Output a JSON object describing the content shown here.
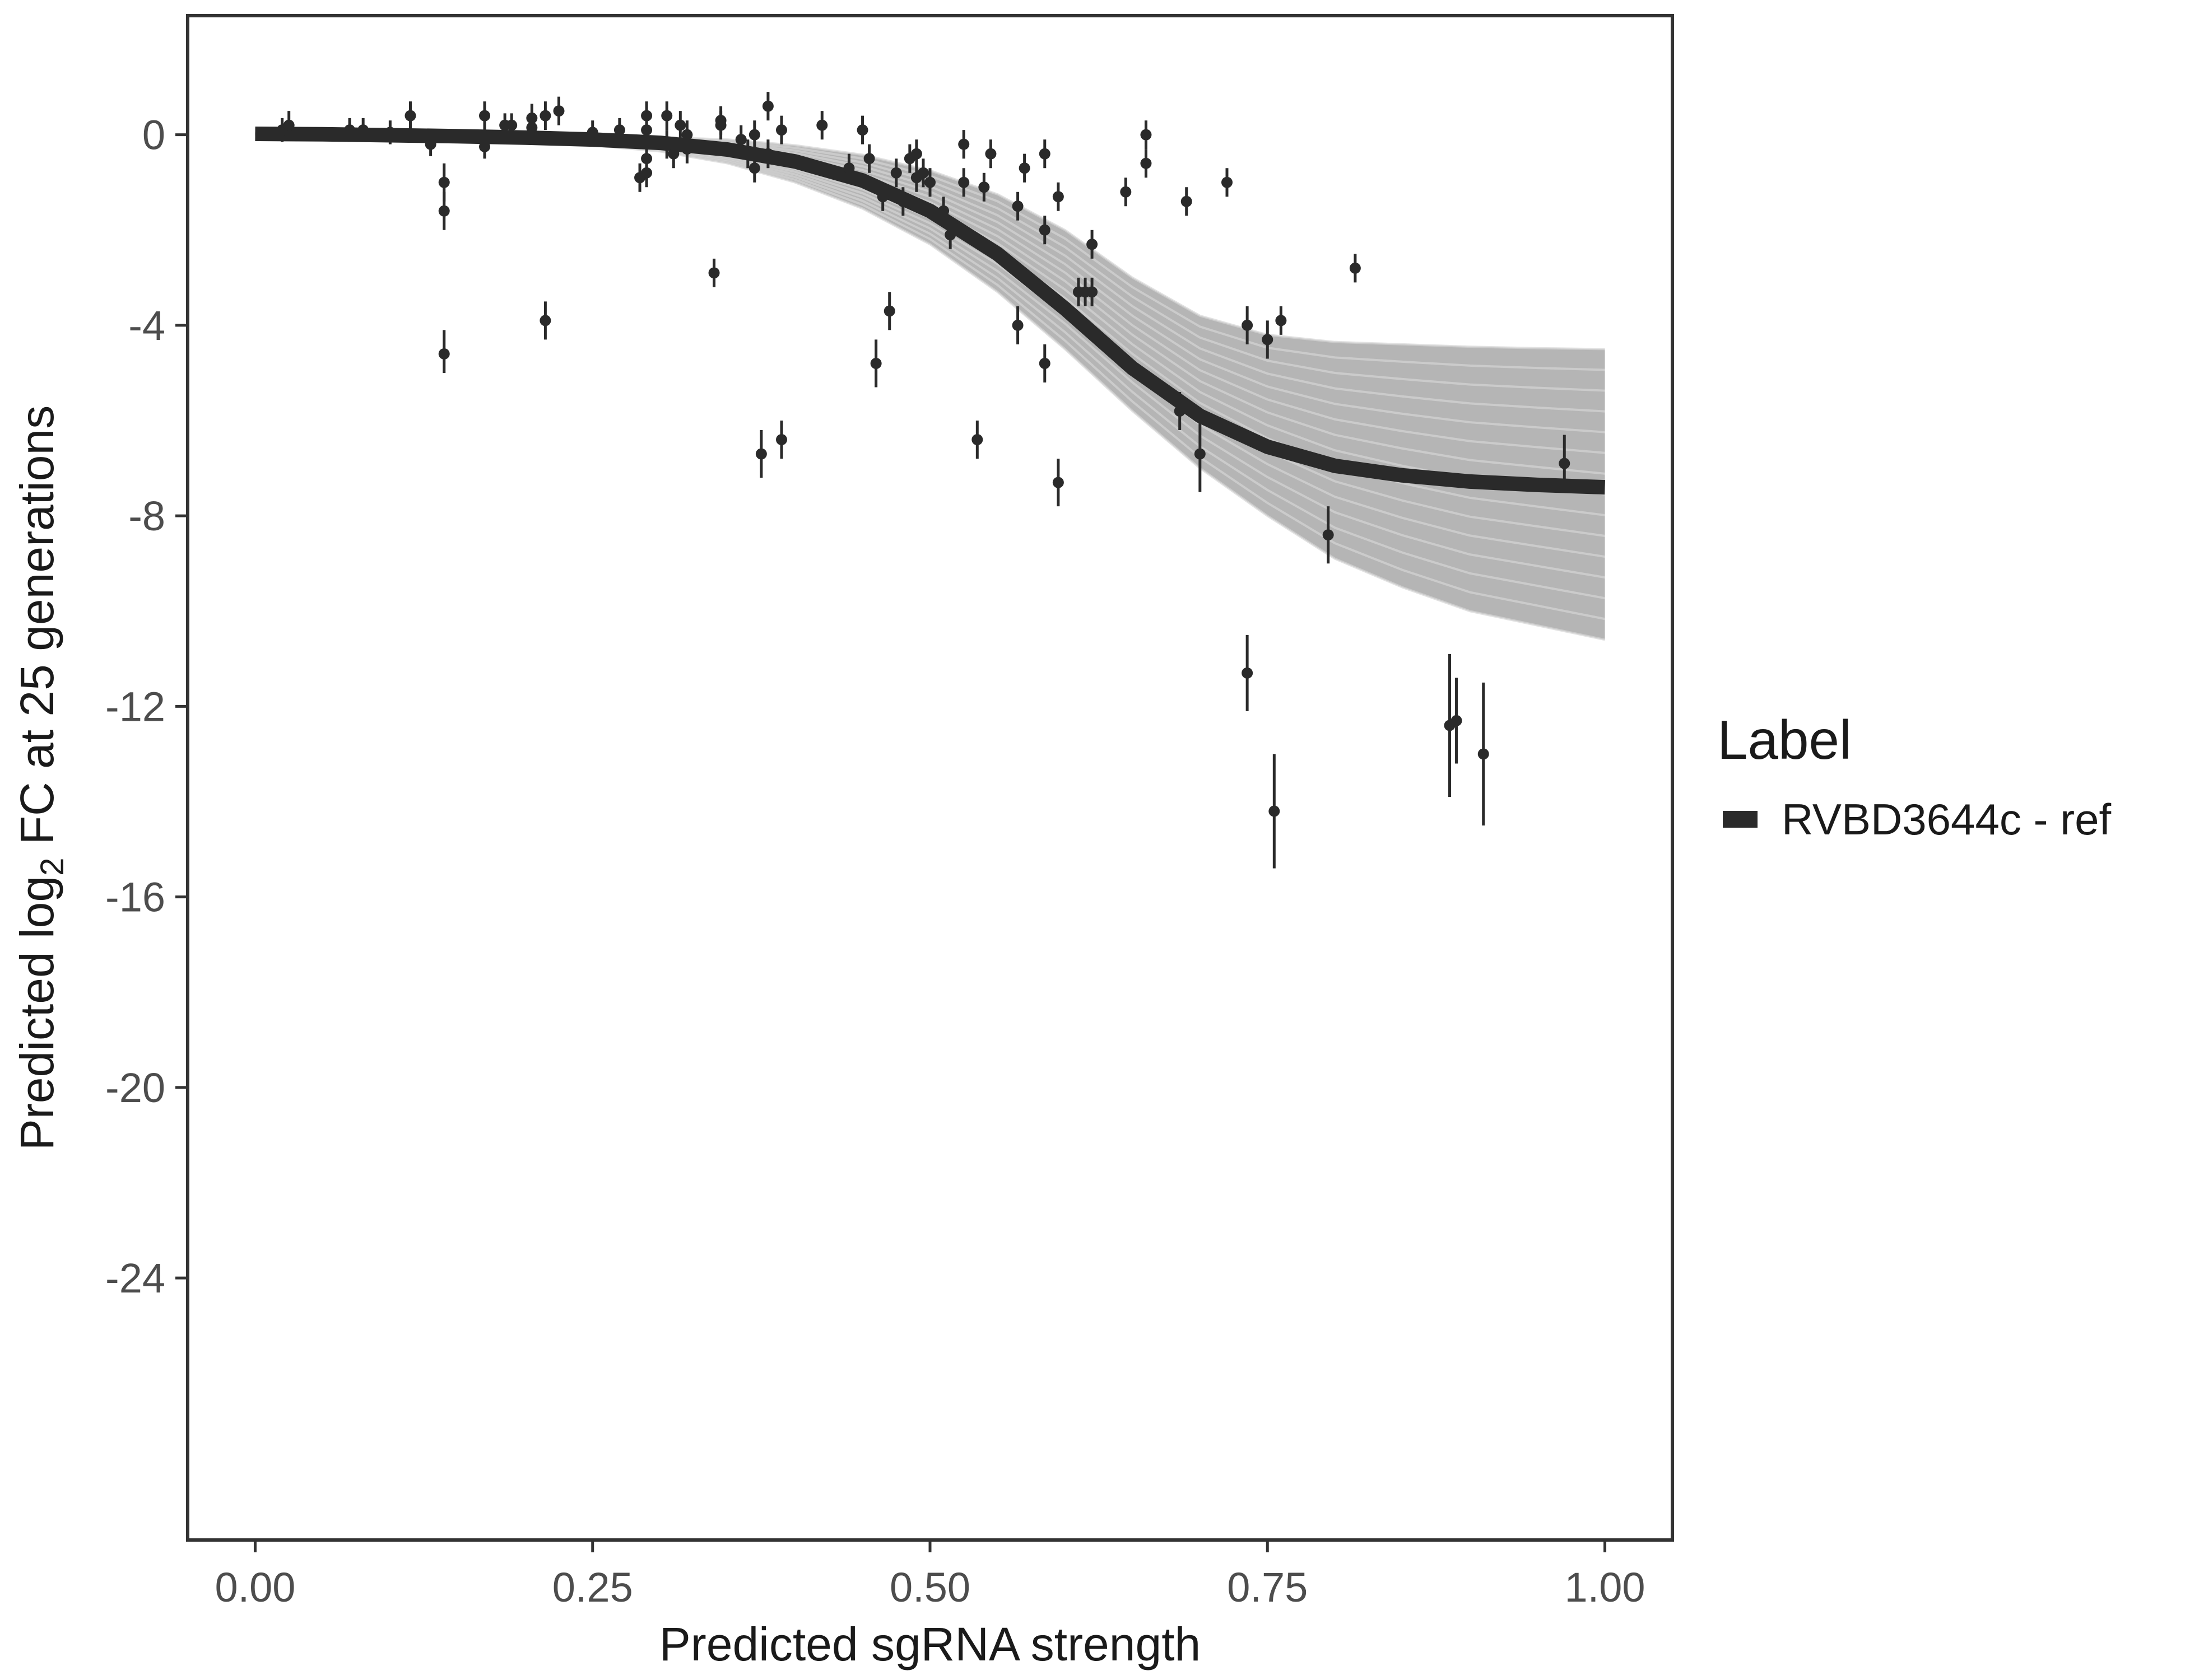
{
  "chart_data": {
    "type": "scatter",
    "title": "",
    "xlabel": "Predicted sgRNA strength",
    "ylabel_parts": [
      "Predicted  log",
      "2",
      " FC at 25 generations"
    ],
    "xlim": [
      -0.05,
      1.05
    ],
    "ylim": [
      -29.5,
      2.5
    ],
    "x_ticks": [
      0,
      0.25,
      0.5,
      0.75,
      1
    ],
    "x_tick_labels": [
      "0.00",
      "0.25",
      "0.50",
      "0.75",
      "1.00"
    ],
    "y_ticks": [
      0,
      -4,
      -8,
      -12,
      -16,
      -20,
      -24
    ],
    "y_tick_labels": [
      "0",
      "-4",
      "-8",
      "-12",
      "-16",
      "-20",
      "-24"
    ],
    "grid": false,
    "legend": {
      "title": "Label",
      "position": "right",
      "entries": [
        {
          "label": "RVBD3644c - ref",
          "color": "#2a2a2a"
        }
      ]
    },
    "fit_curve": {
      "series": "RVBD3644c - ref",
      "x": [
        0,
        0.05,
        0.1,
        0.15,
        0.2,
        0.25,
        0.3,
        0.35,
        0.4,
        0.45,
        0.5,
        0.55,
        0.6,
        0.65,
        0.7,
        0.75,
        0.8,
        0.85,
        0.9,
        0.95,
        1.0
      ],
      "y": [
        0.02,
        0.01,
        -0.01,
        -0.03,
        -0.06,
        -0.1,
        -0.17,
        -0.31,
        -0.56,
        -0.96,
        -1.6,
        -2.5,
        -3.65,
        -4.9,
        -5.9,
        -6.55,
        -6.95,
        -7.15,
        -7.28,
        -7.35,
        -7.4
      ],
      "color": "#2a2a2a"
    },
    "posterior_band": {
      "description_color": "#a8a8a8",
      "x": [
        0,
        0.1,
        0.2,
        0.3,
        0.35,
        0.4,
        0.45,
        0.5,
        0.55,
        0.6,
        0.65,
        0.7,
        0.75,
        0.8,
        0.85,
        0.9,
        0.95,
        1.0
      ],
      "lower": [
        0.0,
        -0.03,
        -0.1,
        -0.35,
        -0.6,
        -1.0,
        -1.55,
        -2.3,
        -3.3,
        -4.5,
        -5.8,
        -7.0,
        -8.0,
        -8.9,
        -9.5,
        -10.0,
        -10.3,
        -10.6
      ],
      "upper": [
        0.05,
        0.02,
        0.0,
        -0.05,
        -0.1,
        -0.22,
        -0.42,
        -0.75,
        -1.25,
        -2.0,
        -3.0,
        -3.8,
        -4.2,
        -4.35,
        -4.4,
        -4.45,
        -4.48,
        -4.5
      ]
    },
    "points": [
      {
        "x": 0.02,
        "y": 0.1,
        "lo": -0.15,
        "hi": 0.35
      },
      {
        "x": 0.025,
        "y": 0.2,
        "lo": -0.1,
        "hi": 0.5
      },
      {
        "x": 0.07,
        "y": 0.1,
        "lo": -0.15,
        "hi": 0.35
      },
      {
        "x": 0.08,
        "y": 0.1,
        "lo": -0.15,
        "hi": 0.35
      },
      {
        "x": 0.1,
        "y": 0.05,
        "lo": -0.2,
        "hi": 0.3
      },
      {
        "x": 0.115,
        "y": 0.4,
        "lo": 0.1,
        "hi": 0.7
      },
      {
        "x": 0.13,
        "y": -0.2,
        "lo": -0.45,
        "hi": 0.05
      },
      {
        "x": 0.14,
        "y": -1.0,
        "lo": -1.4,
        "hi": -0.6
      },
      {
        "x": 0.14,
        "y": -1.6,
        "lo": -2.0,
        "hi": -1.2
      },
      {
        "x": 0.14,
        "y": -4.6,
        "lo": -5.0,
        "hi": -4.1
      },
      {
        "x": 0.17,
        "y": 0.4,
        "lo": 0.1,
        "hi": 0.7
      },
      {
        "x": 0.17,
        "y": -0.25,
        "lo": -0.5,
        "hi": 0.0
      },
      {
        "x": 0.185,
        "y": 0.2,
        "lo": -0.05,
        "hi": 0.45
      },
      {
        "x": 0.19,
        "y": 0.2,
        "lo": -0.05,
        "hi": 0.45
      },
      {
        "x": 0.205,
        "y": 0.35,
        "lo": 0.05,
        "hi": 0.65
      },
      {
        "x": 0.205,
        "y": 0.15,
        "lo": -0.1,
        "hi": 0.4
      },
      {
        "x": 0.215,
        "y": 0.4,
        "lo": 0.1,
        "hi": 0.7
      },
      {
        "x": 0.215,
        "y": -3.9,
        "lo": -4.3,
        "hi": -3.5
      },
      {
        "x": 0.225,
        "y": 0.5,
        "lo": 0.2,
        "hi": 0.8
      },
      {
        "x": 0.25,
        "y": 0.05,
        "lo": -0.2,
        "hi": 0.3
      },
      {
        "x": 0.27,
        "y": 0.1,
        "lo": -0.15,
        "hi": 0.35
      },
      {
        "x": 0.285,
        "y": -0.9,
        "lo": -1.2,
        "hi": -0.6
      },
      {
        "x": 0.29,
        "y": 0.4,
        "lo": 0.1,
        "hi": 0.7
      },
      {
        "x": 0.29,
        "y": 0.1,
        "lo": -0.2,
        "hi": 0.4
      },
      {
        "x": 0.29,
        "y": -0.5,
        "lo": -0.8,
        "hi": -0.2
      },
      {
        "x": 0.29,
        "y": -0.8,
        "lo": -1.1,
        "hi": -0.5
      },
      {
        "x": 0.305,
        "y": 0.4,
        "lo": 0.1,
        "hi": 0.7
      },
      {
        "x": 0.305,
        "y": -0.2,
        "lo": -0.5,
        "hi": 0.1
      },
      {
        "x": 0.31,
        "y": -0.4,
        "lo": -0.7,
        "hi": -0.1
      },
      {
        "x": 0.315,
        "y": 0.2,
        "lo": -0.1,
        "hi": 0.5
      },
      {
        "x": 0.32,
        "y": 0.0,
        "lo": -0.3,
        "hi": 0.3
      },
      {
        "x": 0.32,
        "y": -0.3,
        "lo": -0.6,
        "hi": 0.0
      },
      {
        "x": 0.34,
        "y": -2.9,
        "lo": -3.2,
        "hi": -2.6
      },
      {
        "x": 0.345,
        "y": 0.3,
        "lo": 0.0,
        "hi": 0.6
      },
      {
        "x": 0.345,
        "y": 0.2,
        "lo": -0.1,
        "hi": 0.5
      },
      {
        "x": 0.36,
        "y": -0.1,
        "lo": -0.4,
        "hi": 0.2
      },
      {
        "x": 0.365,
        "y": -0.4,
        "lo": -0.7,
        "hi": -0.1
      },
      {
        "x": 0.37,
        "y": 0.0,
        "lo": -0.3,
        "hi": 0.3
      },
      {
        "x": 0.37,
        "y": -0.7,
        "lo": -1.0,
        "hi": -0.4
      },
      {
        "x": 0.375,
        "y": -6.7,
        "lo": -7.2,
        "hi": -6.2
      },
      {
        "x": 0.38,
        "y": 0.6,
        "lo": 0.3,
        "hi": 0.9
      },
      {
        "x": 0.38,
        "y": -0.4,
        "lo": -0.7,
        "hi": -0.1
      },
      {
        "x": 0.39,
        "y": 0.1,
        "lo": -0.2,
        "hi": 0.4
      },
      {
        "x": 0.39,
        "y": -6.4,
        "lo": -6.8,
        "hi": -6.0
      },
      {
        "x": 0.42,
        "y": 0.2,
        "lo": -0.1,
        "hi": 0.5
      },
      {
        "x": 0.44,
        "y": -0.7,
        "lo": -1.0,
        "hi": -0.4
      },
      {
        "x": 0.45,
        "y": 0.1,
        "lo": -0.2,
        "hi": 0.4
      },
      {
        "x": 0.455,
        "y": -0.5,
        "lo": -0.8,
        "hi": -0.2
      },
      {
        "x": 0.46,
        "y": -4.8,
        "lo": -5.3,
        "hi": -4.3
      },
      {
        "x": 0.465,
        "y": -1.3,
        "lo": -1.6,
        "hi": -1.0
      },
      {
        "x": 0.47,
        "y": -3.7,
        "lo": -4.1,
        "hi": -3.3
      },
      {
        "x": 0.475,
        "y": -0.8,
        "lo": -1.1,
        "hi": -0.5
      },
      {
        "x": 0.48,
        "y": -1.4,
        "lo": -1.7,
        "hi": -1.1
      },
      {
        "x": 0.485,
        "y": -0.5,
        "lo": -0.8,
        "hi": -0.2
      },
      {
        "x": 0.49,
        "y": -0.9,
        "lo": -1.2,
        "hi": -0.6
      },
      {
        "x": 0.49,
        "y": -0.4,
        "lo": -0.7,
        "hi": -0.1
      },
      {
        "x": 0.495,
        "y": -0.8,
        "lo": -1.1,
        "hi": -0.5
      },
      {
        "x": 0.5,
        "y": -1.0,
        "lo": -1.3,
        "hi": -0.7
      },
      {
        "x": 0.51,
        "y": -1.6,
        "lo": -1.9,
        "hi": -1.3
      },
      {
        "x": 0.515,
        "y": -2.1,
        "lo": -2.4,
        "hi": -1.8
      },
      {
        "x": 0.525,
        "y": -1.0,
        "lo": -1.3,
        "hi": -0.7
      },
      {
        "x": 0.525,
        "y": -0.2,
        "lo": -0.5,
        "hi": 0.1
      },
      {
        "x": 0.535,
        "y": -6.4,
        "lo": -6.8,
        "hi": -6.0
      },
      {
        "x": 0.54,
        "y": -1.1,
        "lo": -1.4,
        "hi": -0.8
      },
      {
        "x": 0.545,
        "y": -0.4,
        "lo": -0.7,
        "hi": -0.1
      },
      {
        "x": 0.565,
        "y": -1.5,
        "lo": -1.8,
        "hi": -1.2
      },
      {
        "x": 0.565,
        "y": -4.0,
        "lo": -4.4,
        "hi": -3.6
      },
      {
        "x": 0.57,
        "y": -0.7,
        "lo": -1.0,
        "hi": -0.4
      },
      {
        "x": 0.585,
        "y": -0.4,
        "lo": -0.7,
        "hi": -0.1
      },
      {
        "x": 0.585,
        "y": -2.0,
        "lo": -2.3,
        "hi": -1.7
      },
      {
        "x": 0.585,
        "y": -4.8,
        "lo": -5.2,
        "hi": -4.4
      },
      {
        "x": 0.595,
        "y": -1.3,
        "lo": -1.6,
        "hi": -1.0
      },
      {
        "x": 0.595,
        "y": -7.3,
        "lo": -7.8,
        "hi": -6.8
      },
      {
        "x": 0.61,
        "y": -3.3,
        "lo": -3.6,
        "hi": -3.0
      },
      {
        "x": 0.615,
        "y": -3.3,
        "lo": -3.6,
        "hi": -3.0
      },
      {
        "x": 0.62,
        "y": -2.3,
        "lo": -2.6,
        "hi": -2.0
      },
      {
        "x": 0.62,
        "y": -3.3,
        "lo": -3.6,
        "hi": -3.0
      },
      {
        "x": 0.645,
        "y": -1.2,
        "lo": -1.5,
        "hi": -0.9
      },
      {
        "x": 0.66,
        "y": 0.0,
        "lo": -0.3,
        "hi": 0.3
      },
      {
        "x": 0.66,
        "y": -0.6,
        "lo": -0.9,
        "hi": -0.3
      },
      {
        "x": 0.685,
        "y": -5.8,
        "lo": -6.2,
        "hi": -5.4
      },
      {
        "x": 0.69,
        "y": -1.4,
        "lo": -1.7,
        "hi": -1.1
      },
      {
        "x": 0.7,
        "y": -6.7,
        "lo": -7.5,
        "hi": -5.9
      },
      {
        "x": 0.72,
        "y": -1.0,
        "lo": -1.3,
        "hi": -0.7
      },
      {
        "x": 0.735,
        "y": -4.0,
        "lo": -4.4,
        "hi": -3.6
      },
      {
        "x": 0.735,
        "y": -11.3,
        "lo": -12.1,
        "hi": -10.5
      },
      {
        "x": 0.75,
        "y": -4.3,
        "lo": -4.7,
        "hi": -3.9
      },
      {
        "x": 0.755,
        "y": -14.2,
        "lo": -15.4,
        "hi": -13.0
      },
      {
        "x": 0.76,
        "y": -3.9,
        "lo": -4.2,
        "hi": -3.6
      },
      {
        "x": 0.795,
        "y": -8.4,
        "lo": -9.0,
        "hi": -7.8
      },
      {
        "x": 0.815,
        "y": -2.8,
        "lo": -3.1,
        "hi": -2.5
      },
      {
        "x": 0.885,
        "y": -12.4,
        "lo": -13.9,
        "hi": -10.9
      },
      {
        "x": 0.89,
        "y": -12.3,
        "lo": -13.2,
        "hi": -11.4
      },
      {
        "x": 0.91,
        "y": -13.0,
        "lo": -14.5,
        "hi": -11.5
      },
      {
        "x": 0.97,
        "y": -6.9,
        "lo": -7.4,
        "hi": -6.3
      }
    ]
  }
}
